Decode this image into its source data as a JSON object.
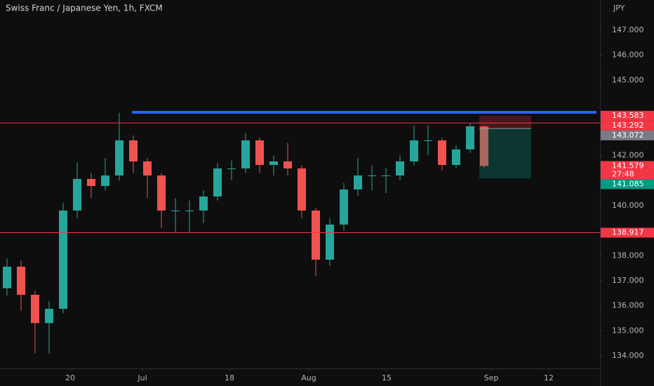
{
  "chart_data": {
    "type": "candlestick",
    "title": "Swiss Franc / Japanese Yen, 1h, FXCM",
    "unit_label": "JPY",
    "open": [
      136.7,
      137.56,
      136.44,
      135.31,
      135.88,
      139.8,
      141.06,
      140.78,
      141.2,
      142.6,
      141.76,
      141.2,
      139.8,
      139.8,
      139.8,
      140.36,
      141.48,
      141.48,
      142.6,
      141.62,
      141.76,
      141.48,
      139.8,
      137.84,
      139.24,
      140.64,
      141.2,
      141.2,
      141.2,
      141.76,
      142.6,
      142.6,
      141.62,
      142.24,
      143.16
    ],
    "high": [
      137.9,
      137.8,
      136.6,
      136.2,
      140.1,
      141.7,
      141.3,
      141.9,
      143.7,
      142.8,
      141.9,
      141.3,
      140.3,
      140.2,
      140.6,
      141.7,
      141.8,
      142.9,
      142.7,
      142.0,
      142.5,
      141.6,
      139.9,
      139.5,
      140.9,
      141.9,
      141.6,
      141.5,
      142.0,
      143.2,
      143.2,
      142.7,
      142.4,
      143.3,
      143.2
    ],
    "low": [
      136.4,
      135.8,
      134.1,
      134.1,
      135.7,
      139.5,
      140.3,
      140.6,
      141.0,
      141.3,
      140.3,
      139.1,
      138.9,
      138.9,
      139.3,
      140.2,
      141.0,
      141.3,
      141.3,
      141.2,
      141.2,
      139.5,
      137.2,
      137.6,
      139.0,
      140.4,
      140.6,
      140.5,
      141.0,
      141.6,
      142.0,
      141.4,
      141.5,
      142.1,
      141.5
    ],
    "close": [
      137.56,
      136.44,
      135.31,
      135.88,
      139.8,
      141.06,
      140.78,
      141.2,
      142.6,
      141.76,
      141.2,
      139.8,
      139.8,
      139.8,
      140.36,
      141.48,
      141.48,
      142.6,
      141.62,
      141.76,
      141.48,
      139.8,
      137.84,
      139.24,
      140.64,
      141.2,
      141.2,
      141.2,
      141.76,
      142.6,
      142.6,
      141.62,
      142.24,
      143.16,
      141.579
    ],
    "up_color": "#26a69a",
    "down_color": "#ef5350",
    "ylim": [
      133.5,
      148.2
    ],
    "yticks": [
      {
        "value": 134,
        "label": "134.000"
      },
      {
        "value": 135,
        "label": "135.000"
      },
      {
        "value": 136,
        "label": "136.000"
      },
      {
        "value": 137,
        "label": "137.000"
      },
      {
        "value": 138,
        "label": "138.000"
      },
      {
        "value": 140,
        "label": "140.000"
      },
      {
        "value": 142,
        "label": "142.000"
      },
      {
        "value": 145,
        "label": "145.000"
      },
      {
        "value": 146,
        "label": "146.000"
      },
      {
        "value": 147,
        "label": "147.000"
      }
    ],
    "xlim": [
      0,
      42.75
    ],
    "xticks": [
      {
        "value": 5,
        "label": "20"
      },
      {
        "value": 10.15,
        "label": "Jul"
      },
      {
        "value": 16.35,
        "label": "18"
      },
      {
        "value": 22,
        "label": "Aug"
      },
      {
        "value": 27.55,
        "label": "15"
      },
      {
        "value": 35,
        "label": "Sep"
      },
      {
        "value": 39.1,
        "label": "12"
      }
    ],
    "resistance": {
      "value": 143.72,
      "color": "#2962ff"
    },
    "levels": [
      {
        "value": 143.292,
        "color": "#f23645"
      },
      {
        "value": 138.917,
        "color": "#f23645"
      }
    ],
    "position": {
      "stop": 143.583,
      "entry": 143.072,
      "target": 141.085,
      "stop_color": "#f23645",
      "entry_color": "#787b86",
      "target_color": "#089981"
    },
    "last_color": "#f23645",
    "countdown": "27:48"
  }
}
